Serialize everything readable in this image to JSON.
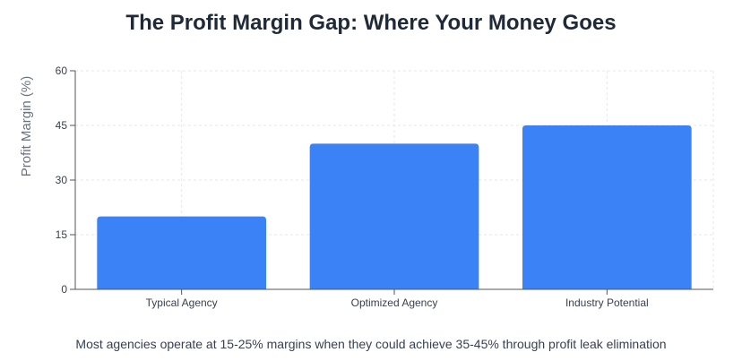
{
  "chart_data": {
    "type": "bar",
    "title": "The Profit Margin Gap: Where Your Money Goes",
    "categories": [
      "Typical Agency",
      "Optimized Agency",
      "Industry Potential"
    ],
    "values": [
      20,
      40,
      45
    ],
    "xlabel": "",
    "ylabel": "Profit Margin (%)",
    "ylim": [
      0,
      60
    ],
    "yticks": [
      0,
      15,
      30,
      45,
      60
    ],
    "grid": true,
    "bar_color": "#3b82f6",
    "caption": "Most agencies operate at 15-25% margins when they could achieve 35-45% through profit leak elimination"
  }
}
